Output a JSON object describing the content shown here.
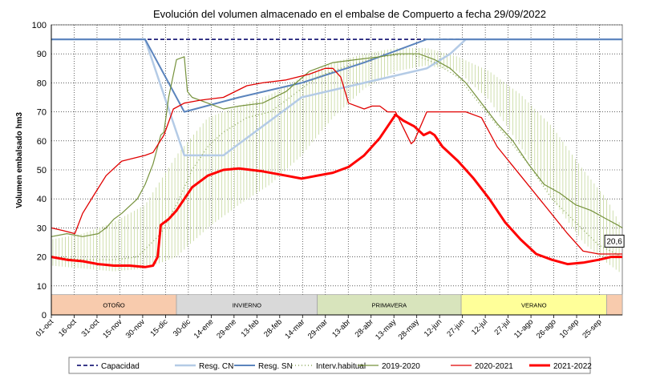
{
  "chart_data": {
    "type": "line",
    "title": "Evolución del volumen almacenado en el embalse de Compuerto a fecha 29/09/2022",
    "ylabel": "Volumen embalsado hm3",
    "xlabel": "",
    "ylim": [
      0,
      100
    ],
    "yticks": [
      0,
      10,
      20,
      30,
      40,
      50,
      60,
      70,
      80,
      90,
      100
    ],
    "grid": true,
    "x_ticks": [
      "01-oct",
      "16-oct",
      "31-oct",
      "15-nov",
      "30-nov",
      "15-dic",
      "30-dic",
      "14-ene",
      "29-ene",
      "13-feb",
      "28-feb",
      "14-mar",
      "29-mar",
      "13-abr",
      "28-abr",
      "13-may",
      "28-may",
      "12-jun",
      "27-jun",
      "12-jul",
      "27-jul",
      "11-ago",
      "26-ago",
      "10-sep",
      "25-sep"
    ],
    "seasons": [
      {
        "label": "OTOÑO",
        "start_day": 0,
        "end_day": 80,
        "color": "#f8cbad"
      },
      {
        "label": "INVIERNO",
        "start_day": 80,
        "end_day": 170,
        "color": "#d9d9d9"
      },
      {
        "label": "PRIMAVERA",
        "start_day": 170,
        "end_day": 262,
        "color": "#d8e4bc"
      },
      {
        "label": "VERANO",
        "start_day": 262,
        "end_day": 355,
        "color": "#ffff99"
      },
      {
        "label": "",
        "start_day": 355,
        "end_day": 365,
        "color": "#f8cbad"
      }
    ],
    "annotation": {
      "text": "20,6",
      "day": 363,
      "value": 20.6
    },
    "legend_position": "bottom",
    "series": [
      {
        "name": "Capacidad",
        "color": "#1f1f7a",
        "width": 1.8,
        "dash": "5,3",
        "points": [
          [
            0,
            95
          ],
          [
            365,
            95
          ]
        ]
      },
      {
        "name": "Resg. CN",
        "color": "#b4cbe6",
        "width": 2.5,
        "points": [
          [
            0,
            95
          ],
          [
            60,
            95
          ],
          [
            85,
            55
          ],
          [
            110,
            55
          ],
          [
            135,
            65
          ],
          [
            160,
            75
          ],
          [
            200,
            80
          ],
          [
            240,
            85
          ],
          [
            255,
            90
          ],
          [
            265,
            95
          ],
          [
            365,
            95
          ]
        ]
      },
      {
        "name": "Resg. SN",
        "color": "#5b84bd",
        "width": 2,
        "points": [
          [
            0,
            95
          ],
          [
            60,
            95
          ],
          [
            85,
            70
          ],
          [
            120,
            75
          ],
          [
            160,
            80
          ],
          [
            200,
            87
          ],
          [
            240,
            95
          ],
          [
            365,
            95
          ]
        ]
      },
      {
        "name": "Interv.habitual",
        "color": "#8eaa5e",
        "width": 1.4,
        "dash": "1,3",
        "band": [
          [
            0,
            17,
            26
          ],
          [
            20,
            16,
            28
          ],
          [
            40,
            15,
            32
          ],
          [
            60,
            16,
            38
          ],
          [
            80,
            20,
            55
          ],
          [
            100,
            30,
            68
          ],
          [
            120,
            38,
            72
          ],
          [
            140,
            45,
            76
          ],
          [
            160,
            55,
            82
          ],
          [
            180,
            68,
            87
          ],
          [
            200,
            78,
            90
          ],
          [
            220,
            84,
            92
          ],
          [
            240,
            86,
            92
          ],
          [
            260,
            84,
            89
          ],
          [
            280,
            74,
            84
          ],
          [
            300,
            58,
            76
          ],
          [
            320,
            40,
            65
          ],
          [
            340,
            25,
            50
          ],
          [
            355,
            18,
            40
          ],
          [
            365,
            14,
            30
          ]
        ],
        "points": [
          [
            0,
            20
          ],
          [
            20,
            19
          ],
          [
            40,
            19
          ],
          [
            55,
            20
          ],
          [
            70,
            28
          ],
          [
            80,
            38
          ],
          [
            90,
            50
          ],
          [
            100,
            58
          ],
          [
            110,
            63
          ],
          [
            125,
            68
          ],
          [
            140,
            70
          ],
          [
            155,
            76
          ],
          [
            170,
            82
          ],
          [
            190,
            86
          ],
          [
            210,
            89
          ],
          [
            230,
            90
          ],
          [
            245,
            87
          ],
          [
            260,
            82
          ],
          [
            275,
            72
          ],
          [
            290,
            62
          ],
          [
            305,
            52
          ],
          [
            320,
            40
          ],
          [
            335,
            32
          ],
          [
            350,
            24
          ],
          [
            365,
            20
          ]
        ]
      },
      {
        "name": "2019-2020",
        "color": "#76923c",
        "width": 1.2,
        "points": [
          [
            0,
            27
          ],
          [
            10,
            28
          ],
          [
            20,
            27
          ],
          [
            30,
            28
          ],
          [
            35,
            30
          ],
          [
            40,
            33
          ],
          [
            45,
            35
          ],
          [
            55,
            40
          ],
          [
            60,
            45
          ],
          [
            65,
            52
          ],
          [
            70,
            62
          ],
          [
            72,
            63
          ],
          [
            75,
            75
          ],
          [
            80,
            88
          ],
          [
            85,
            89
          ],
          [
            87,
            77
          ],
          [
            90,
            75
          ],
          [
            95,
            74
          ],
          [
            100,
            73
          ],
          [
            110,
            71
          ],
          [
            120,
            72
          ],
          [
            135,
            73
          ],
          [
            150,
            77
          ],
          [
            165,
            84
          ],
          [
            180,
            87
          ],
          [
            195,
            88
          ],
          [
            210,
            89
          ],
          [
            222,
            90
          ],
          [
            235,
            90
          ],
          [
            245,
            88
          ],
          [
            255,
            85
          ],
          [
            265,
            80
          ],
          [
            275,
            73
          ],
          [
            285,
            66
          ],
          [
            295,
            60
          ],
          [
            305,
            52
          ],
          [
            315,
            45
          ],
          [
            325,
            42
          ],
          [
            335,
            38
          ],
          [
            345,
            36
          ],
          [
            355,
            33
          ],
          [
            362,
            31
          ],
          [
            365,
            30
          ]
        ]
      },
      {
        "name": "2020-2021",
        "color": "#e00000",
        "width": 1.3,
        "points": [
          [
            0,
            30
          ],
          [
            8,
            29
          ],
          [
            15,
            28
          ],
          [
            20,
            35
          ],
          [
            28,
            42
          ],
          [
            35,
            48
          ],
          [
            45,
            53
          ],
          [
            60,
            55
          ],
          [
            65,
            56
          ],
          [
            72,
            62
          ],
          [
            78,
            71
          ],
          [
            85,
            73
          ],
          [
            95,
            74
          ],
          [
            110,
            75
          ],
          [
            125,
            79
          ],
          [
            135,
            80
          ],
          [
            150,
            81
          ],
          [
            165,
            83
          ],
          [
            175,
            85
          ],
          [
            180,
            85
          ],
          [
            185,
            82
          ],
          [
            190,
            73
          ],
          [
            200,
            71
          ],
          [
            205,
            72
          ],
          [
            210,
            72
          ],
          [
            215,
            70
          ],
          [
            220,
            70
          ],
          [
            230,
            59
          ],
          [
            232,
            60
          ],
          [
            240,
            70
          ],
          [
            250,
            70
          ],
          [
            265,
            70
          ],
          [
            275,
            68
          ],
          [
            285,
            58
          ],
          [
            300,
            48
          ],
          [
            315,
            38
          ],
          [
            330,
            28
          ],
          [
            340,
            22
          ],
          [
            350,
            21
          ],
          [
            358,
            21
          ],
          [
            365,
            21
          ]
        ]
      },
      {
        "name": "2021-2022",
        "color": "#ff0000",
        "width": 3,
        "points": [
          [
            0,
            20
          ],
          [
            10,
            19
          ],
          [
            20,
            18.5
          ],
          [
            30,
            17.5
          ],
          [
            40,
            17
          ],
          [
            50,
            17
          ],
          [
            60,
            16.5
          ],
          [
            65,
            17
          ],
          [
            68,
            20
          ],
          [
            70,
            31
          ],
          [
            75,
            33
          ],
          [
            80,
            36
          ],
          [
            90,
            44
          ],
          [
            100,
            48
          ],
          [
            110,
            50
          ],
          [
            120,
            50.5
          ],
          [
            135,
            49.5
          ],
          [
            150,
            48
          ],
          [
            160,
            47
          ],
          [
            170,
            48
          ],
          [
            180,
            49
          ],
          [
            190,
            51
          ],
          [
            200,
            55
          ],
          [
            210,
            61
          ],
          [
            215,
            65
          ],
          [
            220,
            69
          ],
          [
            225,
            67
          ],
          [
            232,
            65
          ],
          [
            238,
            62
          ],
          [
            242,
            63
          ],
          [
            245,
            62
          ],
          [
            250,
            58
          ],
          [
            260,
            53
          ],
          [
            270,
            47
          ],
          [
            280,
            40
          ],
          [
            290,
            32
          ],
          [
            300,
            26
          ],
          [
            310,
            21
          ],
          [
            320,
            19
          ],
          [
            330,
            17.5
          ],
          [
            340,
            18
          ],
          [
            350,
            19
          ],
          [
            358,
            20
          ],
          [
            365,
            20
          ]
        ]
      }
    ]
  }
}
